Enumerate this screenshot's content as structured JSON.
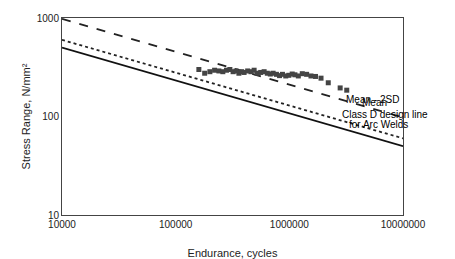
{
  "chart_data": {
    "type": "line",
    "xlabel": "Endurance, cycles",
    "ylabel": "Stress Range, N/mm²",
    "log": true,
    "grid": false,
    "xlim": [
      10000,
      10000000
    ],
    "ylim": [
      10,
      1000
    ],
    "xticks": [
      10000,
      100000,
      1000000,
      10000000
    ],
    "yticks": [
      10,
      100,
      1000
    ],
    "series": [
      {
        "type": "line",
        "line_style": "solid",
        "color": "#111111",
        "x": [
          10000,
          10000000
        ],
        "values": [
          500,
          50
        ]
      },
      {
        "type": "line",
        "line_style": "dotted",
        "color": "#222222",
        "x": [
          10000,
          10000000
        ],
        "values": [
          600,
          60
        ]
      },
      {
        "type": "line",
        "line_style": "dashed",
        "color": "#222222",
        "x": [
          10000,
          10000000
        ],
        "values": [
          980,
          98
        ]
      },
      {
        "type": "scatter",
        "marker": "square",
        "color": "#444444",
        "x": [
          160000,
          180000,
          200000,
          220000,
          240000,
          260000,
          280000,
          300000,
          320000,
          340000,
          360000,
          380000,
          400000,
          430000,
          460000,
          490000,
          520000,
          560000,
          600000,
          640000,
          680000,
          720000,
          770000,
          820000,
          870000,
          930000,
          990000,
          1060000,
          1120000,
          1200000,
          1300000,
          1420000,
          1550000,
          1700000,
          1900000,
          2200000,
          2800000,
          3200000
        ],
        "values": [
          300,
          275,
          285,
          295,
          290,
          285,
          295,
          300,
          285,
          290,
          275,
          285,
          280,
          290,
          285,
          295,
          275,
          280,
          285,
          275,
          270,
          275,
          268,
          260,
          268,
          258,
          262,
          270,
          265,
          258,
          272,
          268,
          258,
          255,
          245,
          220,
          195,
          185
        ]
      }
    ],
    "annotations": [
      {
        "x": 3000000,
        "y": 150,
        "text": "Mean - 2SD"
      },
      {
        "x": 4200000,
        "y": 138,
        "text": "Mean"
      },
      {
        "x": 2800000,
        "y": 105,
        "text": "Class D design line"
      },
      {
        "x": 3200000,
        "y": 82,
        "text": "for Arc Welds"
      }
    ]
  }
}
